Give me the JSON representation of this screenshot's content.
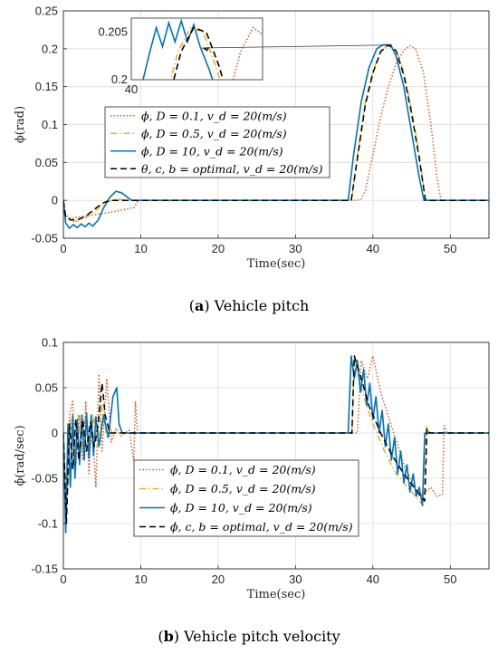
{
  "colors": {
    "series_d01": "#d95319",
    "series_d05": "#edb120",
    "series_d10": "#0072bd",
    "series_opt": "#000000",
    "grid": "#dcdcdc",
    "axis": "#262626"
  },
  "chart_data": [
    {
      "type": "line",
      "caption_prefix": "(",
      "caption_letter": "a",
      "caption_text": ") Vehicle pitch",
      "xlabel": "Time(sec)",
      "ylabel": "ϕ(rad)",
      "xlim": [
        0,
        55
      ],
      "ylim": [
        -0.05,
        0.25
      ],
      "xticks": [
        0,
        10,
        20,
        30,
        40,
        50
      ],
      "yticks": [
        -0.05,
        0,
        0.05,
        0.1,
        0.15,
        0.2,
        0.25
      ],
      "ytick_labels": [
        "-0.05",
        "0",
        "0.05",
        "0.1",
        "0.15",
        "0.2",
        "0.25"
      ],
      "grid": true,
      "legend_position": "center-left",
      "inset": {
        "ytick_label_top": "0.205",
        "ytick_label_bottom": "0.2",
        "xtick_label": "40"
      },
      "series": [
        {
          "name": "ϕ, D = 0.1, v_d = 20(m/s)",
          "legend": "ϕ, D = 0.1, v_d = 20(m/s)",
          "style": "dotted",
          "color_key": "series_d01",
          "points": [
            [
              0,
              0
            ],
            [
              0.3,
              -0.02
            ],
            [
              1,
              -0.024
            ],
            [
              2,
              -0.022
            ],
            [
              4,
              -0.019
            ],
            [
              6,
              -0.016
            ],
            [
              8,
              -0.012
            ],
            [
              9.2,
              -0.009
            ],
            [
              9.6,
              -0.001
            ],
            [
              10,
              0
            ],
            [
              38,
              0
            ],
            [
              38.5,
              0.002
            ],
            [
              39,
              0.012
            ],
            [
              40,
              0.06
            ],
            [
              41,
              0.11
            ],
            [
              42,
              0.15
            ],
            [
              43,
              0.18
            ],
            [
              44,
              0.198
            ],
            [
              44.8,
              0.204
            ],
            [
              45.5,
              0.2
            ],
            [
              46.5,
              0.17
            ],
            [
              47.5,
              0.1
            ],
            [
              48.3,
              0.03
            ],
            [
              48.8,
              0
            ],
            [
              55,
              0
            ]
          ]
        },
        {
          "name": "ϕ, D = 0.5, v_d = 20(m/s)",
          "legend": "ϕ, D = 0.5, v_d = 20(m/s)",
          "style": "dashdot",
          "color_key": "series_d05",
          "points": [
            [
              0,
              0
            ],
            [
              0.3,
              -0.025
            ],
            [
              1,
              -0.028
            ],
            [
              2,
              -0.027
            ],
            [
              3,
              -0.022
            ],
            [
              4,
              -0.015
            ],
            [
              5,
              -0.006
            ],
            [
              6,
              -0.001
            ],
            [
              7,
              0.002
            ],
            [
              8,
              0
            ],
            [
              37,
              0
            ],
            [
              37.3,
              0.002
            ],
            [
              38,
              0.06
            ],
            [
              39,
              0.13
            ],
            [
              40,
              0.17
            ],
            [
              41,
              0.197
            ],
            [
              42,
              0.205
            ],
            [
              43,
              0.198
            ],
            [
              44,
              0.17
            ],
            [
              45,
              0.12
            ],
            [
              46,
              0.06
            ],
            [
              46.8,
              0
            ],
            [
              55,
              0
            ]
          ]
        },
        {
          "name": "ϕ, D = 10, v_d = 20(m/s)",
          "legend": "ϕ, D = 10, v_d = 20(m/s)",
          "style": "solid",
          "color_key": "series_d10",
          "points": [
            [
              0,
              0
            ],
            [
              0.3,
              -0.03
            ],
            [
              0.8,
              -0.037
            ],
            [
              1.3,
              -0.032
            ],
            [
              1.8,
              -0.036
            ],
            [
              2.3,
              -0.031
            ],
            [
              2.8,
              -0.035
            ],
            [
              3.3,
              -0.03
            ],
            [
              3.8,
              -0.034
            ],
            [
              4.5,
              -0.026
            ],
            [
              5.2,
              -0.01
            ],
            [
              6,
              0.004
            ],
            [
              6.8,
              0.012
            ],
            [
              7.5,
              0.01
            ],
            [
              8.3,
              0.004
            ],
            [
              8.8,
              0
            ],
            [
              36.8,
              0
            ],
            [
              37.5,
              0.06
            ],
            [
              38.5,
              0.13
            ],
            [
              39.5,
              0.175
            ],
            [
              40.5,
              0.2
            ],
            [
              41.3,
              0.205
            ],
            [
              42.3,
              0.205
            ],
            [
              43,
              0.19
            ],
            [
              44,
              0.15
            ],
            [
              45,
              0.09
            ],
            [
              46,
              0.03
            ],
            [
              46.6,
              0
            ],
            [
              55,
              0
            ]
          ]
        },
        {
          "name": "θ, c, b = optimal, v_d = 20(m/s)",
          "legend": "θ, c, b = optimal, v_d = 20(m/s)",
          "style": "dashed",
          "color_key": "series_opt",
          "points": [
            [
              0,
              0
            ],
            [
              0.3,
              -0.022
            ],
            [
              1,
              -0.026
            ],
            [
              2,
              -0.025
            ],
            [
              3,
              -0.02
            ],
            [
              4,
              -0.012
            ],
            [
              5,
              -0.004
            ],
            [
              6,
              0
            ],
            [
              37.2,
              0
            ],
            [
              38,
              0.055
            ],
            [
              39,
              0.125
            ],
            [
              40,
              0.168
            ],
            [
              41,
              0.196
            ],
            [
              42,
              0.205
            ],
            [
              43,
              0.197
            ],
            [
              44,
              0.165
            ],
            [
              45,
              0.115
            ],
            [
              46,
              0.055
            ],
            [
              46.8,
              0
            ],
            [
              55,
              0
            ]
          ]
        }
      ]
    },
    {
      "type": "line",
      "caption_prefix": "(",
      "caption_letter": "b",
      "caption_text": ") Vehicle pitch velocity",
      "xlabel": "Time(sec)",
      "ylabel": "ϕ̇(rad/sec)",
      "xlim": [
        0,
        55
      ],
      "ylim": [
        -0.15,
        0.1
      ],
      "xticks": [
        0,
        10,
        20,
        30,
        40,
        50
      ],
      "yticks": [
        -0.15,
        -0.1,
        -0.05,
        0,
        0.05,
        0.1
      ],
      "ytick_labels": [
        "-0.15",
        "-0.1",
        "-0.05",
        "0",
        "0.05",
        "0.1"
      ],
      "grid": true,
      "legend_position": "bottom-center",
      "series": [
        {
          "name": "ϕ̇, D = 0.1, v_d = 20(m/s)",
          "legend": "ϕ̇, D = 0.1, v_d = 20(m/s)",
          "style": "dotted",
          "color_key": "series_d01",
          "points": [
            [
              0,
              0
            ],
            [
              0.4,
              -0.08
            ],
            [
              0.8,
              0.02
            ],
            [
              1.2,
              0.035
            ],
            [
              1.6,
              -0.04
            ],
            [
              2.1,
              0.02
            ],
            [
              2.5,
              -0.03
            ],
            [
              2.9,
              0.035
            ],
            [
              3.3,
              -0.045
            ],
            [
              3.7,
              0.01
            ],
            [
              4.2,
              -0.06
            ],
            [
              4.6,
              0.065
            ],
            [
              5,
              -0.02
            ],
            [
              5.6,
              0.06
            ],
            [
              6.2,
              -0.01
            ],
            [
              6.8,
              0.005
            ],
            [
              7.5,
              -0.003
            ],
            [
              8.5,
              0.003
            ],
            [
              9.1,
              -0.03
            ],
            [
              9.3,
              0.035
            ],
            [
              9.6,
              0
            ],
            [
              38,
              0
            ],
            [
              38.5,
              0.08
            ],
            [
              39.3,
              0.06
            ],
            [
              40,
              0.085
            ],
            [
              41,
              0.045
            ],
            [
              42.5,
              0.005
            ],
            [
              44,
              -0.035
            ],
            [
              46,
              -0.07
            ],
            [
              47.5,
              -0.06
            ],
            [
              48.3,
              -0.07
            ],
            [
              49,
              -0.068
            ],
            [
              49.2,
              0.008
            ],
            [
              49.6,
              0
            ],
            [
              55,
              0
            ]
          ]
        },
        {
          "name": "ϕ̇, D = 0.5, v_d = 20(m/s)",
          "legend": "ϕ̇, D = 0.5, v_d = 20(m/s)",
          "style": "dashdot",
          "color_key": "series_d05",
          "points": [
            [
              0,
              0
            ],
            [
              0.4,
              -0.09
            ],
            [
              0.9,
              0.015
            ],
            [
              1.4,
              -0.03
            ],
            [
              1.9,
              0.02
            ],
            [
              2.4,
              -0.02
            ],
            [
              2.9,
              0.025
            ],
            [
              3.4,
              -0.02
            ],
            [
              3.9,
              0.02
            ],
            [
              4.4,
              -0.015
            ],
            [
              5,
              0.03
            ],
            [
              5.6,
              -0.005
            ],
            [
              6.3,
              0.003
            ],
            [
              7,
              0
            ],
            [
              37.3,
              0
            ],
            [
              37.6,
              0.085
            ],
            [
              38.2,
              0.06
            ],
            [
              39,
              0.035
            ],
            [
              40,
              0.01
            ],
            [
              41.5,
              -0.02
            ],
            [
              43,
              -0.045
            ],
            [
              45,
              -0.065
            ],
            [
              46.5,
              -0.08
            ],
            [
              46.9,
              0.008
            ],
            [
              47.3,
              0
            ],
            [
              55,
              0
            ]
          ]
        },
        {
          "name": "ϕ̇, D = 10, v_d = 20(m/s)",
          "legend": "ϕ̇, D = 10, v_d = 20(m/s)",
          "style": "solid",
          "color_key": "series_d10",
          "points": [
            [
              0,
              0
            ],
            [
              0.3,
              -0.11
            ],
            [
              0.6,
              0.01
            ],
            [
              0.9,
              -0.06
            ],
            [
              1.2,
              0.02
            ],
            [
              1.5,
              -0.05
            ],
            [
              1.8,
              0.015
            ],
            [
              2.1,
              -0.035
            ],
            [
              2.4,
              0.02
            ],
            [
              2.7,
              -0.03
            ],
            [
              3,
              0.022
            ],
            [
              3.3,
              -0.028
            ],
            [
              3.6,
              0.02
            ],
            [
              3.9,
              -0.025
            ],
            [
              4.2,
              0.018
            ],
            [
              4.6,
              -0.015
            ],
            [
              5.2,
              0.02
            ],
            [
              5.8,
              -0.005
            ],
            [
              6.4,
              0.04
            ],
            [
              6.9,
              0.05
            ],
            [
              7.2,
              0.01
            ],
            [
              7.6,
              0
            ],
            [
              36.8,
              0
            ],
            [
              37.2,
              0.085
            ],
            [
              37.6,
              0.06
            ],
            [
              38,
              0.08
            ],
            [
              38.4,
              0.045
            ],
            [
              38.8,
              0.07
            ],
            [
              39.2,
              0.03
            ],
            [
              39.6,
              0.055
            ],
            [
              40,
              0.015
            ],
            [
              40.4,
              0.04
            ],
            [
              40.8,
              0
            ],
            [
              41.2,
              0.025
            ],
            [
              41.6,
              -0.015
            ],
            [
              42,
              0.01
            ],
            [
              42.4,
              -0.03
            ],
            [
              42.8,
              -0.005
            ],
            [
              43.2,
              -0.045
            ],
            [
              43.6,
              -0.02
            ],
            [
              44,
              -0.055
            ],
            [
              44.4,
              -0.035
            ],
            [
              44.8,
              -0.065
            ],
            [
              45.2,
              -0.045
            ],
            [
              45.6,
              -0.07
            ],
            [
              46,
              -0.06
            ],
            [
              46.4,
              -0.08
            ],
            [
              46.7,
              0
            ],
            [
              55,
              0
            ]
          ]
        },
        {
          "name": "ϕ̇, c, b = optimal, v_d = 20(m/s)",
          "legend": "ϕ̇, c, b = optimal, v_d = 20(m/s)",
          "style": "dashed",
          "color_key": "series_opt",
          "points": [
            [
              0,
              0
            ],
            [
              0.4,
              -0.1
            ],
            [
              0.8,
              0.01
            ],
            [
              1.2,
              -0.04
            ],
            [
              1.6,
              0.015
            ],
            [
              2,
              -0.03
            ],
            [
              2.5,
              0.015
            ],
            [
              3,
              -0.02
            ],
            [
              3.5,
              0.012
            ],
            [
              4,
              -0.015
            ],
            [
              4.5,
              0.01
            ],
            [
              5,
              0.055
            ],
            [
              5.4,
              0.02
            ],
            [
              6,
              0
            ],
            [
              37.3,
              0
            ],
            [
              37.6,
              0.085
            ],
            [
              38.5,
              0.06
            ],
            [
              39.5,
              0.03
            ],
            [
              41,
              0
            ],
            [
              42.5,
              -0.025
            ],
            [
              44,
              -0.045
            ],
            [
              45.5,
              -0.062
            ],
            [
              46.7,
              -0.075
            ],
            [
              47,
              0.005
            ],
            [
              47.3,
              0
            ],
            [
              55,
              0
            ]
          ]
        }
      ]
    }
  ]
}
